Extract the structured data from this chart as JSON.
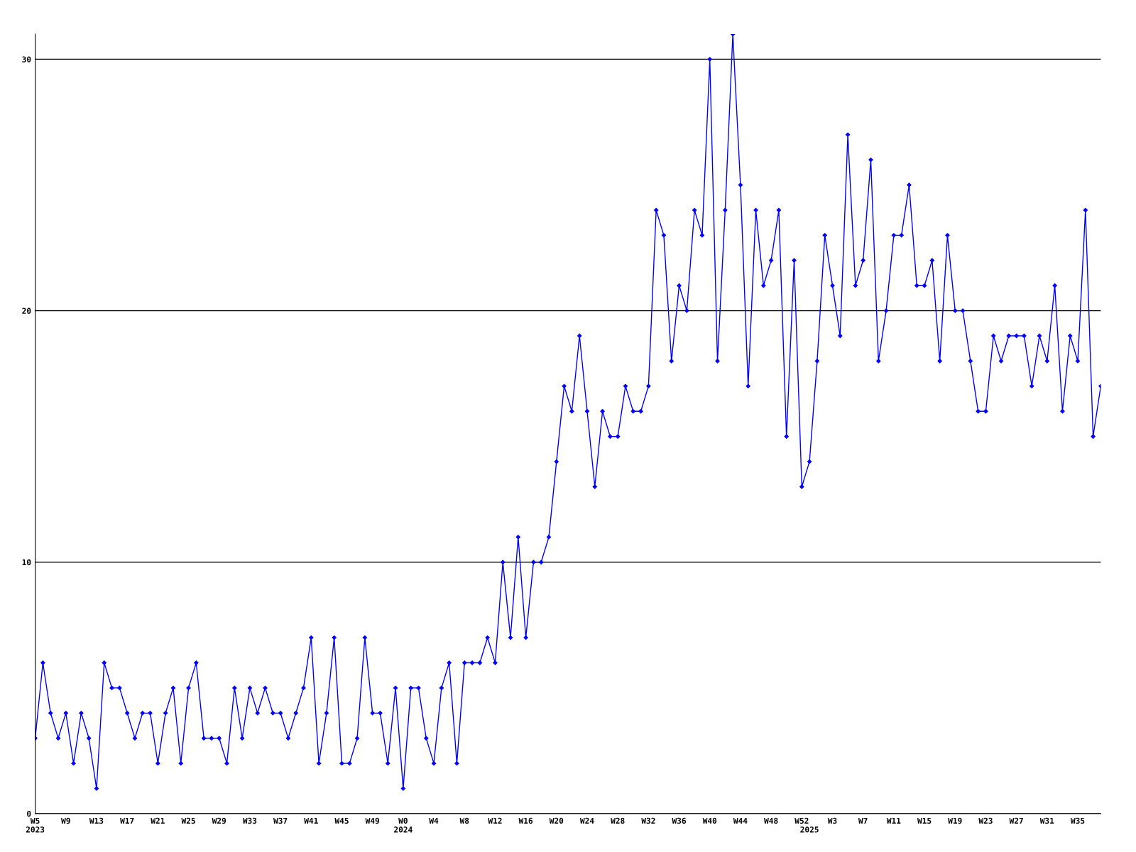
{
  "chart_data": {
    "type": "line",
    "categories": [
      "W5\n2023",
      null,
      null,
      null,
      "W9",
      null,
      null,
      null,
      "W13",
      null,
      null,
      null,
      "W17",
      null,
      null,
      null,
      "W21",
      null,
      null,
      null,
      "W25",
      null,
      null,
      null,
      "W29",
      null,
      null,
      null,
      "W33",
      null,
      null,
      null,
      "W37",
      null,
      null,
      null,
      "W41",
      null,
      null,
      null,
      "W45",
      null,
      null,
      null,
      "W49",
      null,
      null,
      null,
      "W0\n2024",
      null,
      null,
      null,
      "W4",
      null,
      null,
      null,
      "W8",
      null,
      null,
      null,
      "W12",
      null,
      null,
      null,
      "W16",
      null,
      null,
      null,
      "W20",
      null,
      null,
      null,
      "W24",
      null,
      null,
      null,
      "W28",
      null,
      null,
      null,
      "W32",
      null,
      null,
      null,
      "W36",
      null,
      null,
      null,
      "W40",
      null,
      null,
      null,
      "W44",
      null,
      null,
      null,
      "W48",
      null,
      null,
      null,
      "W52",
      "\n2025",
      null,
      null,
      "W3",
      null,
      null,
      null,
      "W7",
      null,
      null,
      null,
      "W11",
      null,
      null,
      null,
      "W15",
      null,
      null,
      null,
      "W19",
      null,
      null,
      null,
      "W23",
      null,
      null,
      null,
      "W27",
      null,
      null,
      null,
      "W31",
      null,
      null,
      null,
      "W35",
      null,
      null,
      null
    ],
    "series": [
      {
        "color": "#0000ff",
        "values": [
          3,
          6,
          4,
          3,
          4,
          2,
          4,
          3,
          1,
          6,
          5,
          5,
          4,
          3,
          4,
          4,
          2,
          4,
          5,
          2,
          5,
          6,
          3,
          3,
          3,
          2,
          5,
          3,
          5,
          4,
          5,
          4,
          4,
          3,
          4,
          5,
          7,
          2,
          4,
          7,
          2,
          2,
          3,
          7,
          4,
          4,
          2,
          5,
          1,
          5,
          5,
          3,
          2,
          5,
          6,
          2,
          6,
          6,
          6,
          7,
          6,
          10,
          7,
          11,
          7,
          10,
          10,
          11,
          14,
          17,
          16,
          19,
          16,
          13,
          16,
          15,
          15,
          17,
          16,
          16,
          17,
          24,
          23,
          18,
          21,
          20,
          24,
          23,
          30,
          18,
          24,
          31,
          25,
          17,
          24,
          21,
          22,
          24,
          15,
          22,
          13,
          14,
          18,
          23,
          21,
          19,
          27,
          21,
          22,
          26,
          18,
          20,
          23,
          23,
          25,
          21,
          21,
          22,
          18,
          23,
          20,
          20,
          18,
          16,
          16,
          19,
          18,
          19,
          19,
          19,
          17,
          19,
          18,
          21,
          16,
          19,
          18,
          24,
          15,
          17
        ]
      }
    ],
    "ylim": [
      0,
      31
    ],
    "yticks": [
      0,
      10,
      20,
      30
    ],
    "grid": "y",
    "marker": "diamond",
    "line_style": "solid"
  }
}
